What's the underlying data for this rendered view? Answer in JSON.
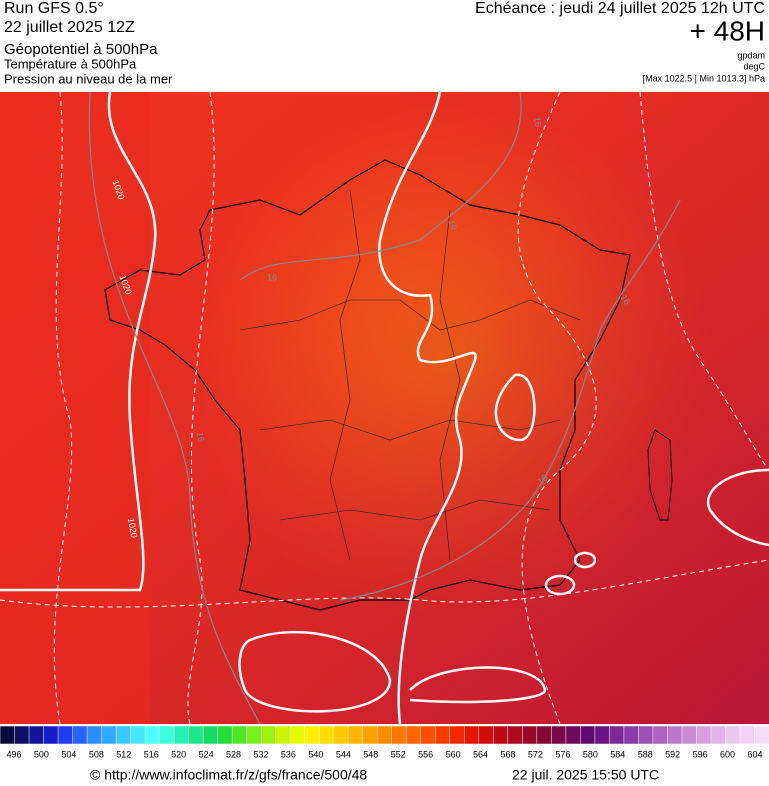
{
  "header": {
    "run": "Run GFS 0.5°",
    "run_date": "22 juillet 2025 12Z",
    "field1": "Géopotentiel à 500hPa",
    "field2": "Température à 500hPa",
    "field3": "Pression au niveau de la mer",
    "forecast": "Echéance : jeudi 24 juillet 2025 12h UTC",
    "lead": "+ 48H",
    "unit1": "gpdam",
    "unit2": "degC",
    "pressure_range": "[Max 1022.5 | Min 1013.3] hPa"
  },
  "map": {
    "contour_labels": [
      "1020",
      "1020",
      "1020",
      "16",
      "16",
      "16",
      "16",
      "16",
      "16"
    ]
  },
  "colorbar": {
    "labels": [
      496,
      500,
      504,
      508,
      512,
      516,
      520,
      524,
      528,
      532,
      536,
      540,
      544,
      548,
      552,
      556,
      560,
      564,
      568,
      572,
      576,
      580,
      584,
      588,
      592,
      596,
      600,
      604
    ],
    "colors": [
      "#0a0a3c",
      "#0f0f64",
      "#141496",
      "#1a1ac8",
      "#1f3cf0",
      "#2864ff",
      "#2d8cff",
      "#32aaff",
      "#3cc8ff",
      "#46e6ff",
      "#50ffff",
      "#3cffdc",
      "#28f0b4",
      "#1ee68c",
      "#14dc64",
      "#28dc3c",
      "#50e628",
      "#78f01e",
      "#a0f014",
      "#c8f50a",
      "#e6fa00",
      "#fff000",
      "#ffdc00",
      "#ffc800",
      "#ffb400",
      "#ffa000",
      "#ff8c00",
      "#ff7800",
      "#ff6400",
      "#ff5000",
      "#ff3c00",
      "#f52800",
      "#e61400",
      "#d20a0a",
      "#be0a14",
      "#aa0a1e",
      "#960a28",
      "#820a32",
      "#780a46",
      "#6e0a5a",
      "#640a6e",
      "#6e1482",
      "#7d2896",
      "#8c3caa",
      "#9b50b4",
      "#aa64be",
      "#b978c8",
      "#c88cd2",
      "#d7a0dc",
      "#e1b4e6",
      "#ebc8f0",
      "#f0d2f5",
      "#f5dcfa"
    ]
  },
  "footer": {
    "url": "© http://www.infoclimat.fr/z/gfs/france/500/48",
    "timestamp": "22 juil. 2025 15:50 UTC"
  }
}
